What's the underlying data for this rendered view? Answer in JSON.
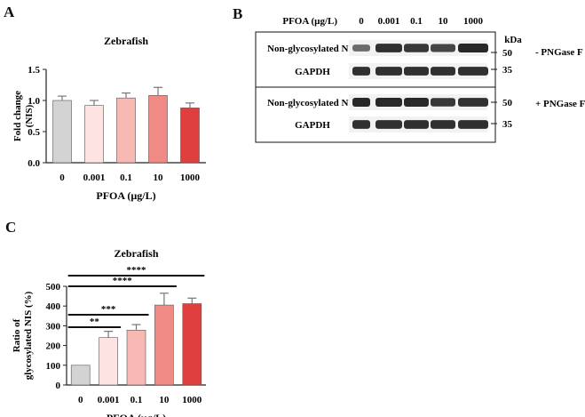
{
  "panels": {
    "a": "A",
    "b": "B",
    "c": "C"
  },
  "chart_data": [
    {
      "type": "bar",
      "title": "Zebrafish",
      "xlabel": "PFOA (µg/L)",
      "ylabel": "Fold change (NIS)",
      "ylabel_lines": [
        "Fold change",
        "(NIS)"
      ],
      "categories": [
        "0",
        "0.001",
        "0.1",
        "10",
        "1000"
      ],
      "values": [
        1.0,
        0.92,
        1.04,
        1.08,
        0.88
      ],
      "errors": [
        0.07,
        0.08,
        0.08,
        0.13,
        0.08
      ],
      "colors": [
        "#d3d3d3",
        "#fde4e2",
        "#f8b9b5",
        "#ef8a84",
        "#e0403d"
      ],
      "ylim": [
        0,
        1.5
      ],
      "yticks": [
        0,
        0.5,
        1.0,
        1.5
      ],
      "ytick_labels": [
        "0.0",
        "0.5",
        "1.0",
        "1.5"
      ]
    },
    {
      "type": "bar",
      "title": "Zebrafish",
      "xlabel": "PFOA (µg/L)",
      "ylabel": "Ratio of glycosylated NIS (%)",
      "ylabel_lines": [
        "Ratio of",
        "glycosylated NIS (%)"
      ],
      "categories": [
        "0",
        "0.001",
        "0.1",
        "10",
        "1000"
      ],
      "values": [
        100,
        240,
        278,
        405,
        412
      ],
      "errors": [
        0,
        32,
        28,
        60,
        28
      ],
      "colors": [
        "#d3d3d3",
        "#fde4e2",
        "#f8b9b5",
        "#ef8a84",
        "#e0403d"
      ],
      "ylim": [
        0,
        500
      ],
      "yticks": [
        0,
        100,
        200,
        300,
        400,
        500
      ],
      "ytick_labels": [
        "0",
        "100",
        "200",
        "300",
        "400",
        "500"
      ],
      "significance": [
        {
          "from": 0,
          "to": 1,
          "label": "**"
        },
        {
          "from": 0,
          "to": 2,
          "label": "***"
        },
        {
          "from": 0,
          "to": 3,
          "label": "****"
        },
        {
          "from": 0,
          "to": 4,
          "label": "****"
        }
      ]
    }
  ],
  "blot": {
    "header_label": "PFOA (µg/L)",
    "lanes": [
      "0",
      "0.001",
      "0.1",
      "10",
      "1000"
    ],
    "kda_label": "kDa",
    "top": {
      "condition": "- PNGase F",
      "rows": [
        {
          "label": "Non-glycosylated NIS",
          "marker": "50",
          "intensity": [
            0.55,
            0.95,
            0.9,
            0.8,
            1.0
          ]
        },
        {
          "label": "GAPDH",
          "marker": "35",
          "intensity": [
            0.95,
            0.95,
            0.95,
            0.95,
            0.95
          ]
        }
      ]
    },
    "bottom": {
      "condition": "+ PNGase F",
      "rows": [
        {
          "label": "Non-glycosylated NIS",
          "marker": "50",
          "intensity": [
            1.0,
            1.0,
            1.0,
            0.9,
            0.95
          ]
        },
        {
          "label": "GAPDH",
          "marker": "35",
          "intensity": [
            0.95,
            0.95,
            0.95,
            0.95,
            0.95
          ]
        }
      ]
    }
  }
}
